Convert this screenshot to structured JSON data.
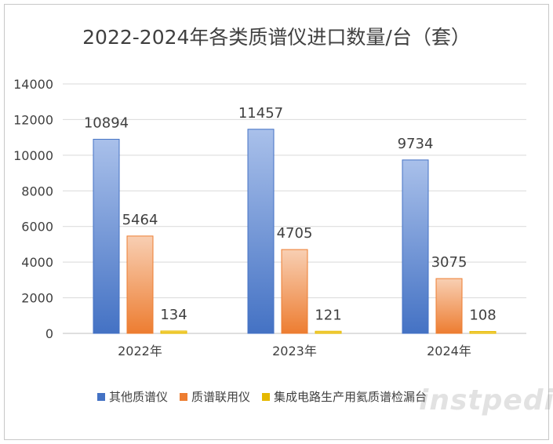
{
  "chart_data": {
    "type": "bar",
    "title": "2022-2024年各类质谱仪进口数量/台（套）",
    "categories": [
      "2022年",
      "2023年",
      "2024年"
    ],
    "series": [
      {
        "name": "其他质谱仪",
        "values": [
          10894,
          11457,
          9734
        ],
        "color": "#4472c4",
        "color_light": "#a9c0ea"
      },
      {
        "name": "质谱联用仪",
        "values": [
          5464,
          4705,
          3075
        ],
        "color": "#ed7d31",
        "color_light": "#f8cfb3"
      },
      {
        "name": "集成电路生产用氦质谱检漏台",
        "values": [
          134,
          121,
          108
        ],
        "color": "#e5b800",
        "color_light": "#ffe680"
      }
    ],
    "ylim": [
      0,
      14000
    ],
    "yticks": [
      0,
      2000,
      4000,
      6000,
      8000,
      10000,
      12000,
      14000
    ],
    "xlabel": "",
    "ylabel": "",
    "grid": true,
    "legend_position": "bottom"
  },
  "watermark": "instpedia"
}
